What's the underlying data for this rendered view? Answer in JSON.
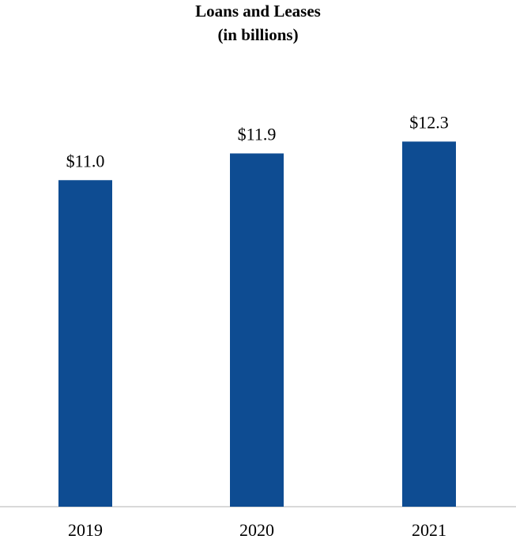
{
  "chart_data": {
    "type": "bar",
    "title": "Loans and Leases",
    "subtitle": "(in billions)",
    "categories": [
      "2019",
      "2020",
      "2021"
    ],
    "values": [
      11.0,
      11.9,
      12.3
    ],
    "value_labels": [
      "$11.0",
      "$11.9",
      "$12.3"
    ],
    "ylim": [
      0,
      13.4
    ],
    "grid": false,
    "legend": "none",
    "colors": {
      "bar": "#0E4C92",
      "axis": "#D9D9D9",
      "text": "#000000"
    }
  }
}
